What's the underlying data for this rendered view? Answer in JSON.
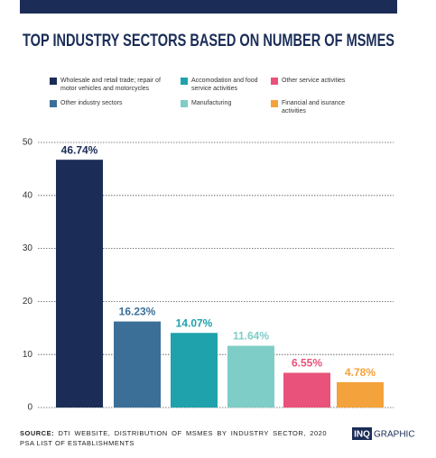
{
  "chart_data": {
    "type": "bar",
    "title": "TOP INDUSTRY SECTORS BASED ON NUMBER OF MSMES",
    "categories": [
      "Wholesale and retail trade; repair of motor vehicles and motorcycles",
      "Other industry sectors",
      "Accomodation and food service activities",
      "Manufacturing",
      "Other service activities",
      "Financial and isurance activities"
    ],
    "values": [
      46.74,
      16.23,
      14.07,
      11.64,
      6.55,
      4.78
    ],
    "value_labels": [
      "46.74%",
      "16.23%",
      "14.07%",
      "11.64%",
      "6.55%",
      "4.78%"
    ],
    "colors": [
      "#1b2d57",
      "#3b6f98",
      "#1fa2ab",
      "#7fcdc7",
      "#e9527a",
      "#f4a23b"
    ],
    "ylim": [
      0,
      50
    ],
    "yticks": [
      0,
      10,
      20,
      30,
      40,
      50
    ],
    "grid": true,
    "source_label": "SOURCE:",
    "source": "DTI WEBSITE, DISTRIBUTION OF MSMES BY INDUSTRY SECTOR, 2020 PSA LIST OF ESTABLISHMENTS",
    "logo": "INQ",
    "logo_text": "GRAPHIC"
  }
}
